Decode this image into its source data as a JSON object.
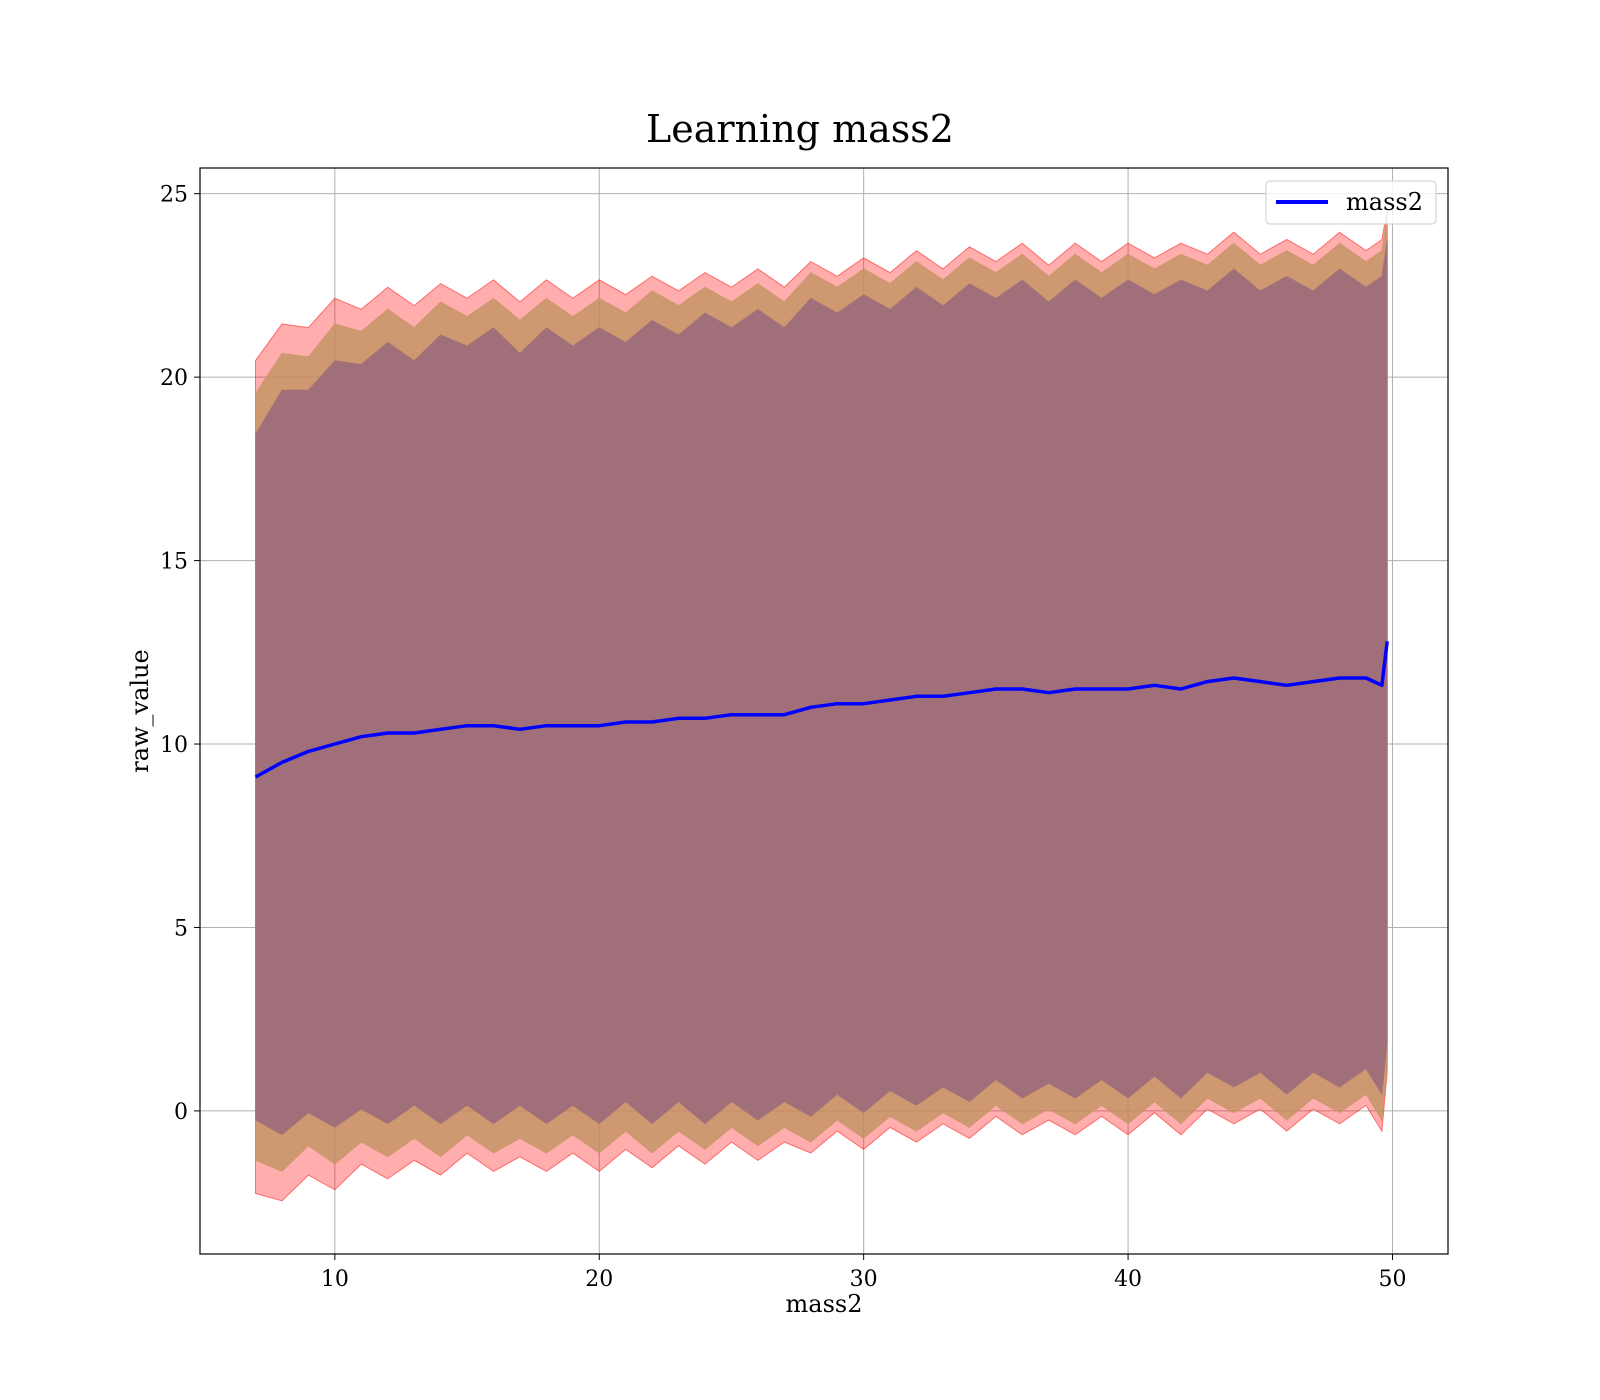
{
  "chart_data": {
    "type": "area",
    "title": "Learning mass2",
    "xlabel": "mass2",
    "ylabel": "raw_value",
    "xlim": [
      4.9,
      52.1
    ],
    "ylim": [
      -3.9,
      25.7
    ],
    "x_ticks": [
      10,
      20,
      30,
      40,
      50
    ],
    "y_ticks": [
      0,
      5,
      10,
      15,
      20,
      25
    ],
    "grid": true,
    "legend": {
      "position": "top-right",
      "entries": [
        "mass2"
      ]
    },
    "colors": {
      "line": "#0000ff",
      "band_outer": "#ff0000",
      "band_middle": "#c29261",
      "band_inner": "#a06f79",
      "grid": "#b0b0b0"
    },
    "series": [
      {
        "name": "mass2",
        "x": [
          7.0,
          8,
          9,
          10,
          11,
          12,
          13,
          14,
          15,
          16,
          17,
          18,
          19,
          20,
          21,
          22,
          23,
          24,
          25,
          26,
          27,
          28,
          29,
          30,
          31,
          32,
          33,
          34,
          35,
          36,
          37,
          38,
          39,
          40,
          41,
          42,
          43,
          44,
          45,
          46,
          47,
          48,
          49,
          49.6,
          49.8
        ],
        "mean": [
          9.1,
          9.5,
          9.8,
          10.0,
          10.2,
          10.3,
          10.3,
          10.4,
          10.5,
          10.5,
          10.4,
          10.5,
          10.5,
          10.5,
          10.6,
          10.6,
          10.7,
          10.7,
          10.8,
          10.8,
          10.8,
          11.0,
          11.1,
          11.1,
          11.2,
          11.3,
          11.3,
          11.4,
          11.5,
          11.5,
          11.4,
          11.5,
          11.5,
          11.5,
          11.6,
          11.5,
          11.7,
          11.8,
          11.7,
          11.6,
          11.7,
          11.8,
          11.8,
          11.6,
          12.8
        ],
        "band_inner": [
          9.6,
          9.9,
          10.1,
          10.2,
          10.4,
          10.4,
          10.4,
          10.5,
          10.6,
          10.6,
          10.5,
          10.6,
          10.6,
          10.6,
          10.6,
          10.7,
          10.7,
          10.8,
          10.8,
          10.8,
          10.8,
          10.9,
          10.9,
          10.9,
          10.9,
          10.9,
          10.9,
          10.9,
          10.9,
          10.9,
          10.9,
          10.9,
          10.9,
          10.9,
          10.9,
          10.9,
          10.9,
          10.9,
          10.9,
          10.9,
          10.9,
          10.9,
          10.9,
          10.9,
          11.2
        ],
        "band_middle": [
          10.7,
          10.9,
          11.0,
          11.2,
          11.3,
          11.3,
          11.3,
          11.4,
          11.4,
          11.4,
          11.4,
          11.4,
          11.4,
          11.4,
          11.4,
          11.5,
          11.5,
          11.5,
          11.5,
          11.5,
          11.5,
          11.6,
          11.6,
          11.6,
          11.6,
          11.6,
          11.6,
          11.6,
          11.6,
          11.6,
          11.6,
          11.6,
          11.6,
          11.6,
          11.6,
          11.6,
          11.6,
          11.6,
          11.6,
          11.6,
          11.6,
          11.6,
          11.6,
          11.6,
          11.9
        ],
        "band_outer": [
          11.6,
          11.7,
          11.8,
          11.9,
          11.9,
          11.9,
          11.9,
          11.9,
          11.9,
          11.9,
          11.9,
          11.9,
          11.9,
          11.9,
          11.9,
          11.9,
          11.9,
          11.9,
          11.9,
          11.9,
          11.9,
          11.9,
          11.9,
          11.9,
          11.9,
          11.9,
          11.9,
          11.9,
          11.9,
          11.9,
          11.9,
          11.9,
          11.9,
          11.9,
          11.9,
          11.9,
          11.9,
          11.9,
          11.9,
          11.9,
          11.9,
          11.9,
          11.9,
          11.9,
          12.0
        ]
      }
    ]
  }
}
